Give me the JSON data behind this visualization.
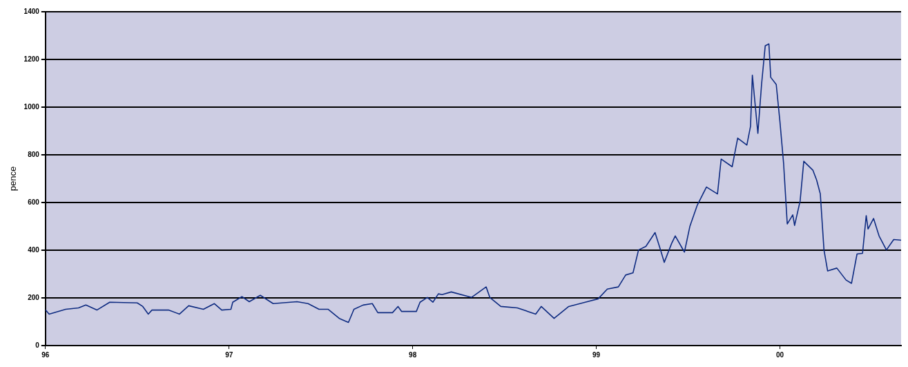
{
  "chart_data": {
    "type": "line",
    "ylabel": "pence",
    "color": "#0d2a80",
    "marker": "none",
    "legend": false,
    "grid": "y",
    "xlim": [
      1996,
      2000.66
    ],
    "xticks": [
      {
        "value": 1996,
        "label": "96"
      },
      {
        "value": 1997,
        "label": "97"
      },
      {
        "value": 1998,
        "label": "98"
      },
      {
        "value": 1999,
        "label": "99"
      },
      {
        "value": 2000,
        "label": "00"
      }
    ],
    "ylim": [
      0,
      1400
    ],
    "yticks": [
      0,
      200,
      400,
      600,
      800,
      1000,
      1200,
      1400
    ],
    "x": [
      1996.0,
      1996.02,
      1996.11,
      1996.18,
      1996.22,
      1996.28,
      1996.35,
      1996.5,
      1996.53,
      1996.56,
      1996.58,
      1996.67,
      1996.73,
      1996.78,
      1996.86,
      1996.92,
      1996.96,
      1997.01,
      1997.02,
      1997.07,
      1997.11,
      1997.17,
      1997.24,
      1997.37,
      1997.43,
      1997.49,
      1997.54,
      1997.6,
      1997.65,
      1997.68,
      1997.73,
      1997.78,
      1997.81,
      1997.89,
      1997.92,
      1997.94,
      1998.02,
      1998.04,
      1998.08,
      1998.11,
      1998.14,
      1998.16,
      1998.21,
      1998.32,
      1998.4,
      1998.42,
      1998.48,
      1998.57,
      1998.67,
      1998.7,
      1998.77,
      1998.85,
      1998.94,
      1999.01,
      1999.06,
      1999.12,
      1999.16,
      1999.2,
      1999.23,
      1999.27,
      1999.32,
      1999.35,
      1999.37,
      1999.41,
      1999.43,
      1999.48,
      1999.51,
      1999.55,
      1999.6,
      1999.66,
      1999.68,
      1999.74,
      1999.77,
      1999.82,
      1999.84,
      1999.85,
      1999.88,
      1999.9,
      1999.92,
      1999.94,
      1999.95,
      1999.98,
      2000.0,
      2000.02,
      2000.04,
      2000.07,
      2000.08,
      2000.11,
      2000.13,
      2000.18,
      2000.2,
      2000.22,
      2000.24,
      2000.26,
      2000.31,
      2000.36,
      2000.39,
      2000.42,
      2000.45,
      2000.47,
      2000.48,
      2000.51,
      2000.54,
      2000.58,
      2000.62,
      2000.66
    ],
    "values": [
      150,
      132,
      152,
      158,
      170,
      149,
      182,
      179,
      164,
      132,
      149,
      149,
      132,
      167,
      152,
      176,
      149,
      152,
      182,
      205,
      184,
      211,
      176,
      184,
      176,
      152,
      152,
      114,
      97,
      152,
      170,
      176,
      138,
      138,
      164,
      143,
      143,
      182,
      202,
      182,
      217,
      214,
      225,
      202,
      246,
      202,
      164,
      158,
      132,
      164,
      114,
      164,
      182,
      196,
      237,
      246,
      296,
      305,
      401,
      416,
      474,
      401,
      349,
      428,
      460,
      392,
      501,
      589,
      665,
      636,
      782,
      750,
      870,
      841,
      920,
      1134,
      890,
      1095,
      1257,
      1265,
      1125,
      1095,
      940,
      765,
      510,
      548,
      504,
      606,
      773,
      735,
      694,
      636,
      401,
      313,
      325,
      275,
      261,
      384,
      387,
      545,
      489,
      533,
      460,
      401,
      445,
      442
    ]
  }
}
